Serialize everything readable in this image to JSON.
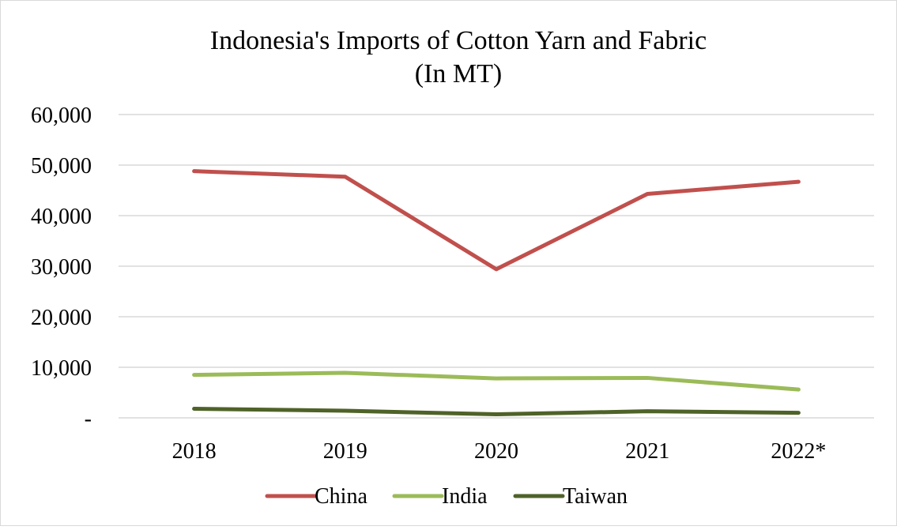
{
  "chart_data": {
    "type": "line",
    "title": "Indonesia's Imports of Cotton Yarn and Fabric",
    "subtitle": "(In MT)",
    "xlabel": "",
    "ylabel": "",
    "categories": [
      "2018",
      "2019",
      "2020",
      "2021",
      "2022*"
    ],
    "ylim": [
      0,
      60000
    ],
    "yticks": [
      0,
      10000,
      20000,
      30000,
      40000,
      50000,
      60000
    ],
    "ytick_labels": [
      "-",
      "10,000",
      "20,000",
      "30,000",
      "40,000",
      "50,000",
      "60,000"
    ],
    "grid": true,
    "legend_position": "bottom",
    "series": [
      {
        "name": "China",
        "color": "#c0504d",
        "values": [
          48800,
          47700,
          29400,
          44300,
          46700
        ]
      },
      {
        "name": "India",
        "color": "#9bbb59",
        "values": [
          8500,
          8900,
          7800,
          7900,
          5600
        ]
      },
      {
        "name": "Taiwan",
        "color": "#4f6228",
        "values": [
          1800,
          1400,
          700,
          1300,
          1000
        ]
      }
    ]
  }
}
